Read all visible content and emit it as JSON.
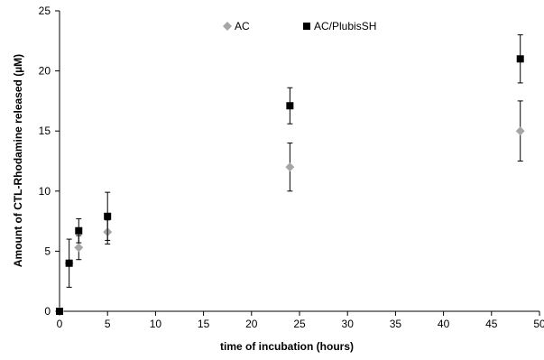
{
  "chart_data": {
    "type": "scatter",
    "xlabel": "time of incubation (hours)",
    "ylabel": "Amount of CTL-Rhodamine released (µM)",
    "xlim": [
      0,
      50
    ],
    "ylim": [
      0,
      25
    ],
    "x_ticks": [
      "0",
      "5",
      "10",
      "15",
      "20",
      "25",
      "30",
      "35",
      "40",
      "45",
      "50"
    ],
    "y_ticks": [
      "0",
      "5",
      "10",
      "15",
      "20",
      "25"
    ],
    "grid": false,
    "legend_position": "top-center",
    "series": [
      {
        "name": "AC",
        "marker": "diamond",
        "color": "#a6a6a6",
        "points": [
          {
            "x": 0,
            "y": 0,
            "err": 0
          },
          {
            "x": 1,
            "y": 4.0,
            "err": 0
          },
          {
            "x": 2,
            "y": 5.3,
            "err": 1.0
          },
          {
            "x": 5,
            "y": 6.6,
            "err": 1.0
          },
          {
            "x": 24,
            "y": 12.0,
            "err": 2.0
          },
          {
            "x": 48,
            "y": 15.0,
            "err": 2.5
          }
        ]
      },
      {
        "name": "AC/PlubisSH",
        "marker": "square",
        "color": "#000000",
        "points": [
          {
            "x": 0,
            "y": 0,
            "err": 0
          },
          {
            "x": 1,
            "y": 4.0,
            "err": 2.0
          },
          {
            "x": 2,
            "y": 6.7,
            "err": 1.0
          },
          {
            "x": 5,
            "y": 7.9,
            "err": 2.0
          },
          {
            "x": 24,
            "y": 17.1,
            "err": 1.5
          },
          {
            "x": 48,
            "y": 21.0,
            "err": 2.0
          }
        ]
      }
    ]
  }
}
